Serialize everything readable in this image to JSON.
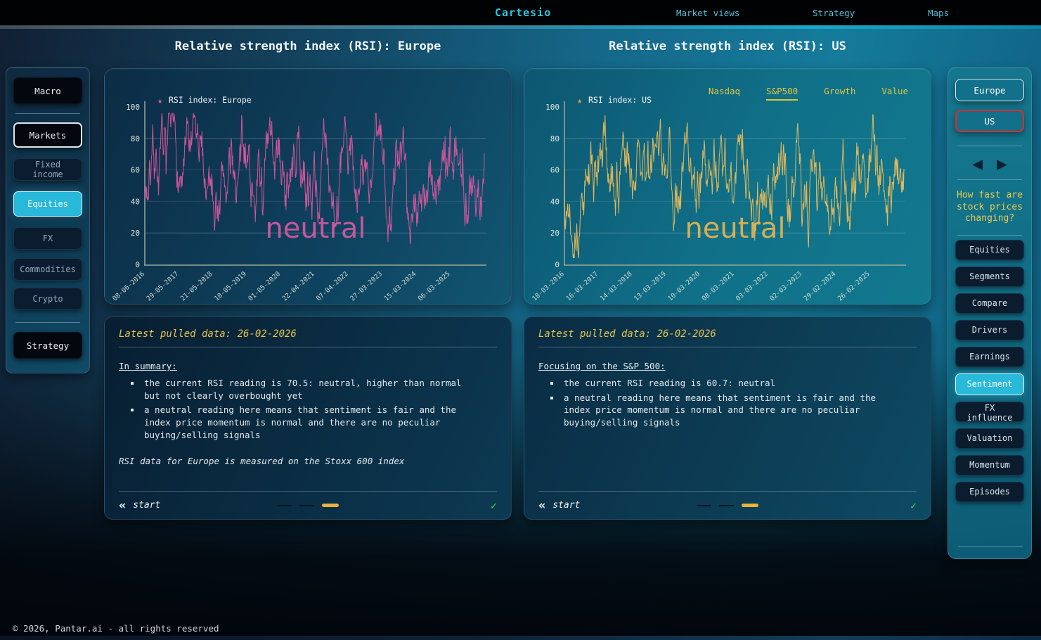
{
  "nav": {
    "logo": "Cartesio",
    "links": [
      {
        "label": "Market views"
      },
      {
        "label": "Strategy"
      },
      {
        "label": "Maps"
      }
    ]
  },
  "titles": {
    "europe": "Relative strength index (RSI): Europe",
    "us": "Relative strength index (RSI): US"
  },
  "left_sidebar": {
    "items": [
      {
        "label": "Macro"
      },
      {
        "label": "Markets",
        "state": "selected"
      },
      {
        "label": "Fixed income"
      },
      {
        "label": "Equities",
        "state": "active"
      },
      {
        "label": "FX"
      },
      {
        "label": "Commodities"
      },
      {
        "label": "Crypto"
      },
      {
        "label": "Strategy"
      }
    ]
  },
  "us_tabs": {
    "items": [
      {
        "label": "Nasdaq"
      },
      {
        "label": "S&P500",
        "state": "active"
      },
      {
        "label": "Growth"
      },
      {
        "label": "Value"
      }
    ]
  },
  "chart_data": [
    {
      "id": "europe",
      "type": "line",
      "title": "Relative strength index (RSI): Europe",
      "legend": "RSI index: Europe",
      "legend_marker": "★",
      "watermark": "neutral",
      "line_color": "#d9559e",
      "marker_color": "#e35fa8",
      "watermark_color": "#e05aa8",
      "x_ticks": [
        "08-06-2016",
        "29-05-2017",
        "21-05-2018",
        "10-05-2019",
        "01-05-2020",
        "22-04-2021",
        "07-04-2022",
        "27-03-2023",
        "15-03-2024",
        "06-03-2025"
      ],
      "y_ticks": [
        0,
        20,
        40,
        60,
        80,
        100
      ],
      "ylim": [
        0,
        100
      ],
      "current_value": 70.5,
      "observed_range": [
        8,
        96
      ],
      "benchmark": "Stoxx 600",
      "seed": 7
    },
    {
      "id": "us",
      "type": "line",
      "title": "Relative strength index (RSI): US",
      "legend": "RSI index: US",
      "legend_marker": "★",
      "watermark": "neutral",
      "line_color": "#ecbb57",
      "marker_color": "#f0a62e",
      "watermark_color": "#f0b84e",
      "x_ticks": [
        "18-03-2016",
        "16-03-2017",
        "14-03-2018",
        "13-03-2019",
        "10-03-2020",
        "08-03-2021",
        "03-03-2022",
        "02-03-2023",
        "29-02-2024",
        "26-02-2025"
      ],
      "y_ticks": [
        0,
        20,
        40,
        60,
        80,
        100
      ],
      "ylim": [
        0,
        100
      ],
      "current_value": 60.7,
      "observed_range": [
        4,
        96
      ],
      "benchmark": "S&P 500",
      "seed": 13
    }
  ],
  "europe_panel": {
    "header": "Latest pulled data: 26-02-2026",
    "summary_title": "In summary:",
    "bullets": [
      "the current RSI reading is 70.5: neutral, higher than normal but not clearly overbought yet",
      "a neutral reading here means that sentiment is fair and the index price momentum is normal and there are no peculiar buying/selling signals"
    ],
    "note": "RSI data for Europe is measured on the Stoxx 600 index",
    "start_label": "start"
  },
  "us_panel": {
    "header": "Latest pulled data: 26-02-2026",
    "summary_title": "Focusing on the S&P 500:",
    "bullets": [
      "the current RSI reading is 60.7: neutral",
      "a neutral reading here means that sentiment is fair and the index price momentum is normal and there are no peculiar buying/selling signals"
    ],
    "start_label": "start"
  },
  "right_sidebar": {
    "region_buttons": [
      {
        "label": "Europe"
      },
      {
        "label": "US",
        "state": "selected"
      }
    ],
    "question": "How fast are stock prices changing?",
    "items": [
      {
        "label": "Equities"
      },
      {
        "label": "Segments"
      },
      {
        "label": "Compare"
      },
      {
        "label": "Drivers"
      },
      {
        "label": "Earnings"
      },
      {
        "label": "Sentiment",
        "state": "active"
      },
      {
        "label": "FX influence"
      },
      {
        "label": "Valuation"
      },
      {
        "label": "Momentum"
      },
      {
        "label": "Episodes"
      }
    ]
  },
  "icons": {
    "back": "«",
    "check": "✓",
    "prev": "◀",
    "next": "▶"
  },
  "footer": {
    "copyright": "© 2026, Pantar.ai - all rights reserved"
  }
}
